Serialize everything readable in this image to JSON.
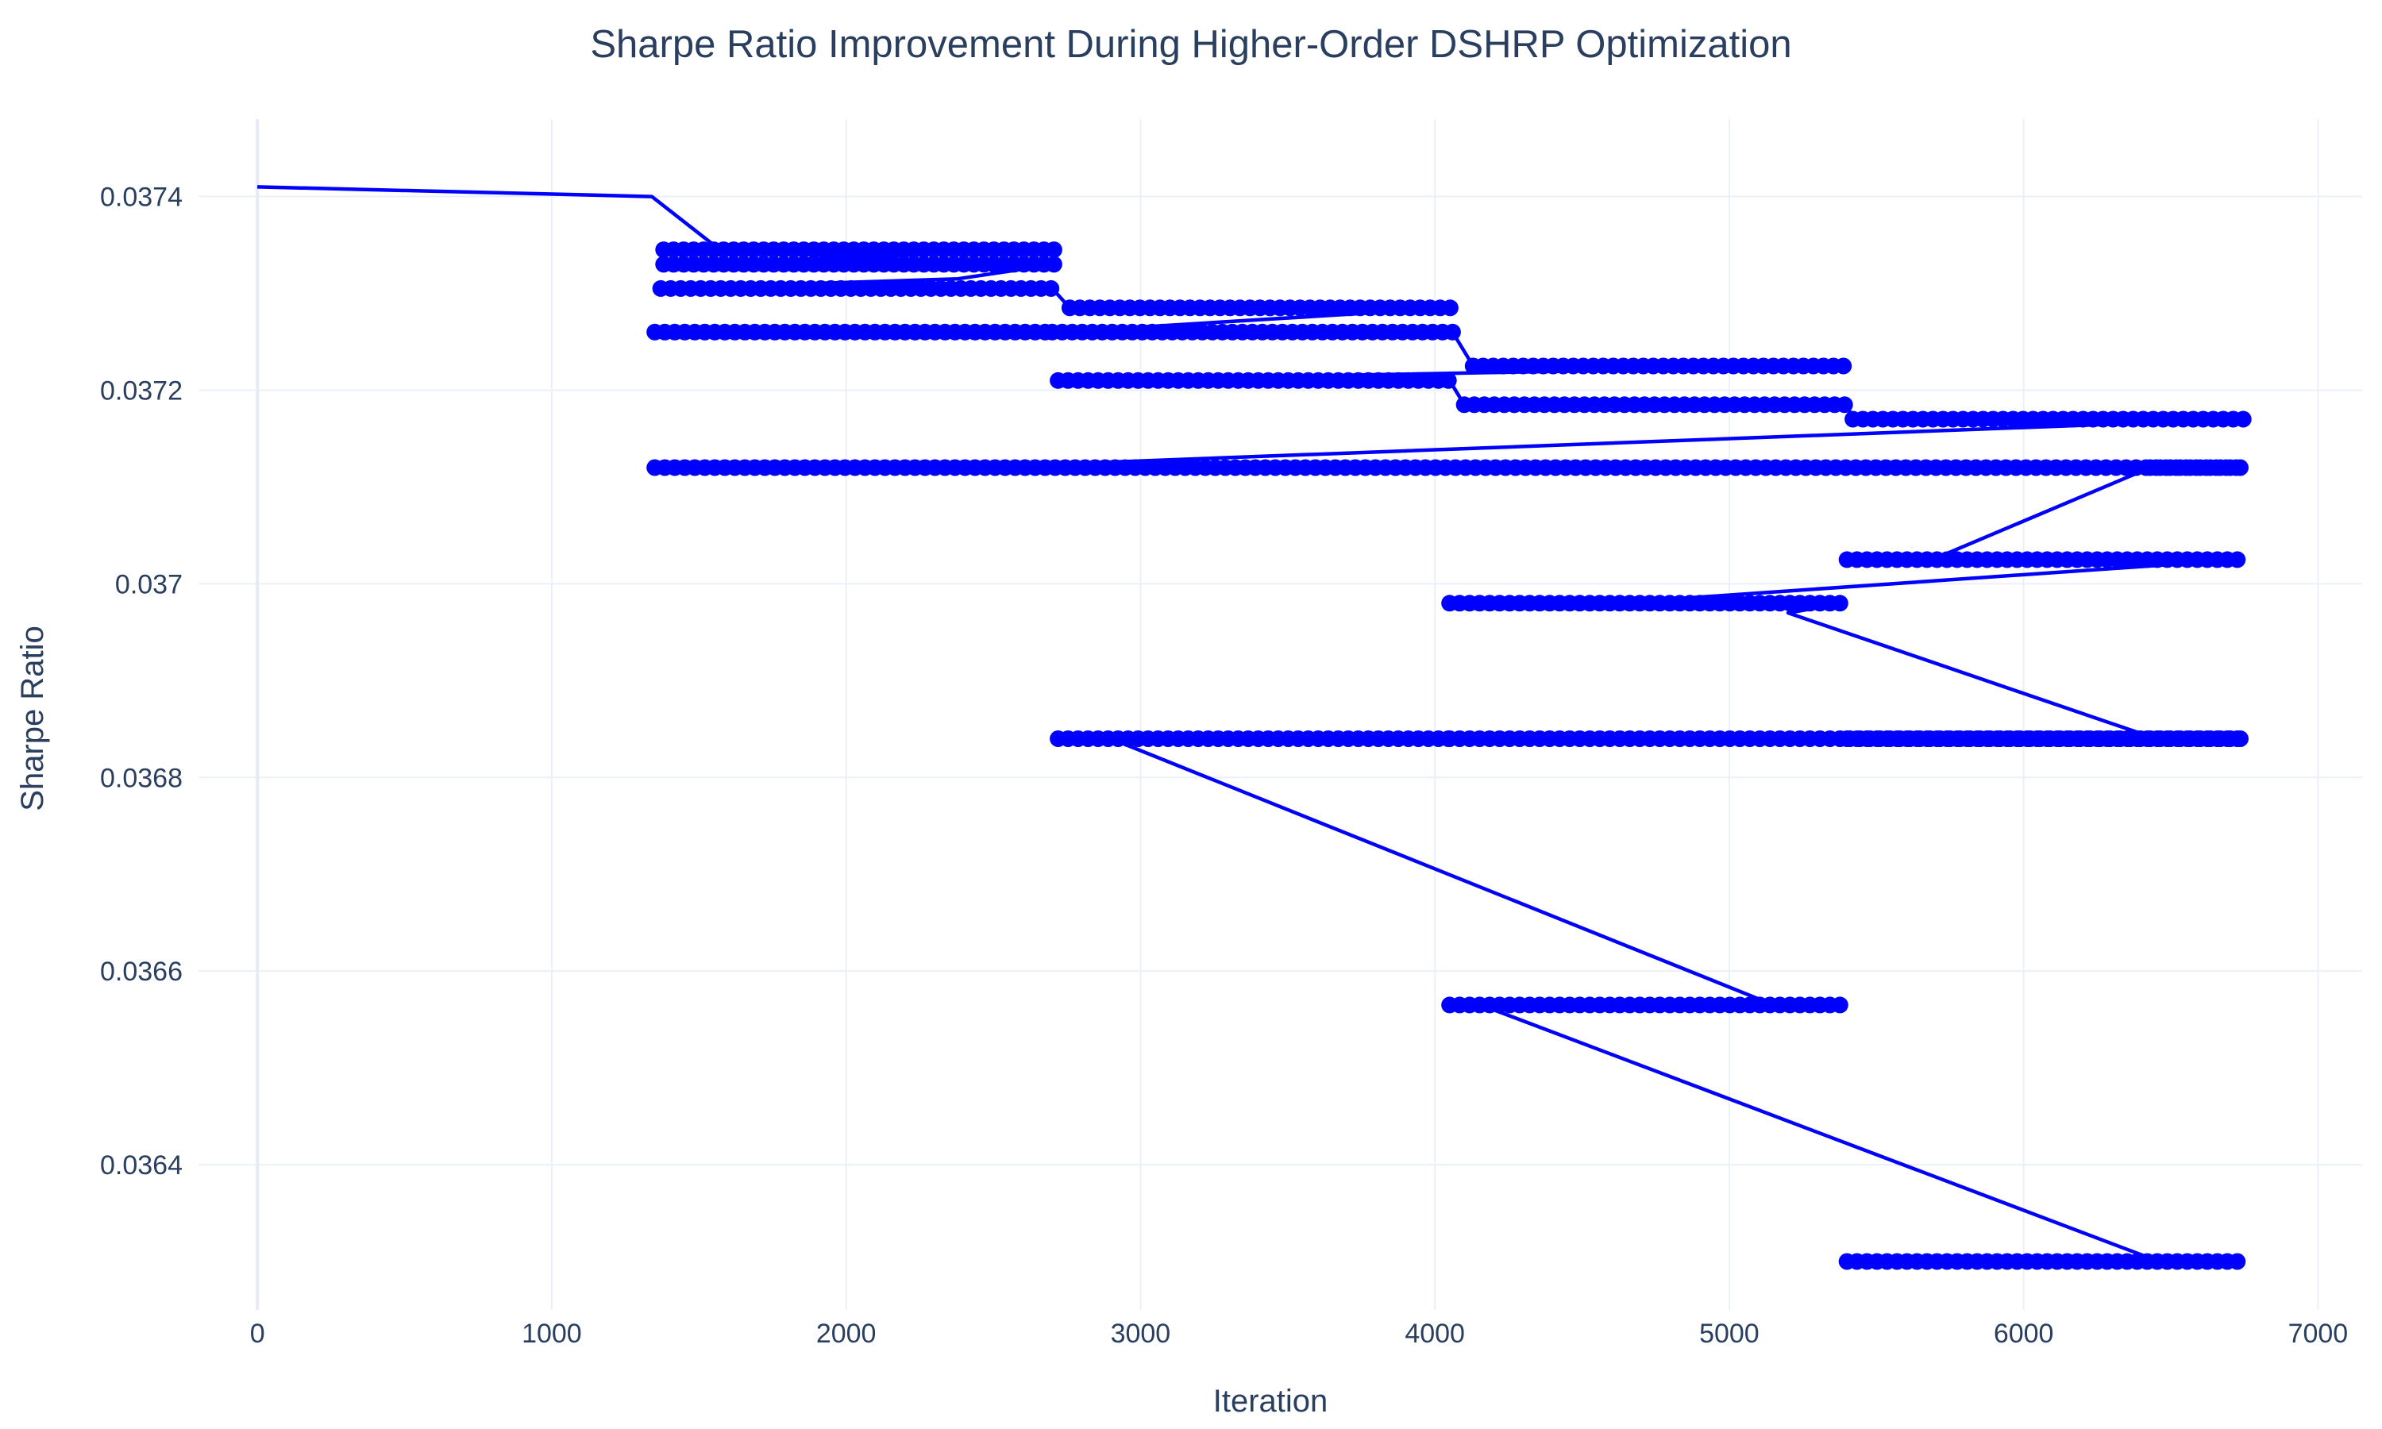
{
  "chart_data": {
    "type": "line",
    "title": "Sharpe Ratio Improvement During Higher-Order DSHRP Optimization",
    "xlabel": "Iteration",
    "ylabel": "Sharpe Ratio",
    "xlim": [
      -200,
      7150
    ],
    "ylim": [
      0.03625,
      0.03748
    ],
    "x_ticks": [
      0,
      1000,
      2000,
      3000,
      4000,
      5000,
      6000,
      7000
    ],
    "x_tick_labels": [
      "0",
      "1000",
      "2000",
      "3000",
      "4000",
      "5000",
      "6000",
      "7000"
    ],
    "y_ticks": [
      0.0364,
      0.0366,
      0.0368,
      0.037,
      0.0372,
      0.0374
    ],
    "y_tick_labels": [
      "0.0364",
      "0.0366",
      "0.0368",
      "0.037",
      "0.0372",
      "0.0374"
    ],
    "grid": true,
    "legend": "none",
    "series_color": "#0000ff",
    "mode": "lines+markers",
    "series": [
      {
        "values": [
          [
            0,
            0.03741
          ],
          [
            1340,
            0.0374
          ],
          [
            1340,
            0.0374
          ],
          [
            1550,
            0.03735
          ],
          [
            1380,
            0.037345
          ],
          [
            2720,
            0.037345
          ],
          [
            1380,
            0.03733
          ],
          [
            2710,
            0.03733
          ],
          [
            2710,
            0.03733
          ],
          [
            2380,
            0.037315
          ],
          [
            1370,
            0.037305
          ],
          [
            2700,
            0.037305
          ],
          [
            2700,
            0.037305
          ],
          [
            2760,
            0.037285
          ],
          [
            2760,
            0.037285
          ],
          [
            4060,
            0.037285
          ],
          [
            4060,
            0.037285
          ],
          [
            2720,
            0.03726
          ],
          [
            1350,
            0.03726
          ],
          [
            2700,
            0.03726
          ],
          [
            2700,
            0.03726
          ],
          [
            4060,
            0.03726
          ],
          [
            4060,
            0.03726
          ],
          [
            4130,
            0.037225
          ],
          [
            4130,
            0.037225
          ],
          [
            5410,
            0.037225
          ],
          [
            2720,
            0.03721
          ],
          [
            4050,
            0.03721
          ],
          [
            4050,
            0.03721
          ],
          [
            4100,
            0.037185
          ],
          [
            4100,
            0.037185
          ],
          [
            5400,
            0.037185
          ],
          [
            5400,
            0.037185
          ],
          [
            5420,
            0.03717
          ],
          [
            5420,
            0.03717
          ],
          [
            6750,
            0.03717
          ],
          [
            6750,
            0.03717
          ],
          [
            2400,
            0.03712
          ],
          [
            1350,
            0.03712
          ],
          [
            6750,
            0.03712
          ],
          [
            6750,
            0.03712
          ],
          [
            6430,
            0.03712
          ],
          [
            6430,
            0.03712
          ],
          [
            5690,
            0.037025
          ],
          [
            5400,
            0.037025
          ],
          [
            6740,
            0.037025
          ],
          [
            6740,
            0.037025
          ],
          [
            4600,
            0.03698
          ],
          [
            4050,
            0.03698
          ],
          [
            5390,
            0.03698
          ],
          [
            5390,
            0.03698
          ],
          [
            5200,
            0.03697
          ],
          [
            5200,
            0.03697
          ],
          [
            6450,
            0.03684
          ],
          [
            5400,
            0.03684
          ],
          [
            6740,
            0.03684
          ],
          [
            6740,
            0.03684
          ],
          [
            4050,
            0.03684
          ],
          [
            2720,
            0.03684
          ],
          [
            4050,
            0.03684
          ],
          [
            2900,
            0.03684
          ],
          [
            5110,
            0.03657
          ],
          [
            4050,
            0.036565
          ],
          [
            5390,
            0.036565
          ],
          [
            4200,
            0.03656
          ],
          [
            6460,
            0.0363
          ],
          [
            5400,
            0.0363
          ],
          [
            6740,
            0.0363
          ]
        ]
      }
    ]
  }
}
